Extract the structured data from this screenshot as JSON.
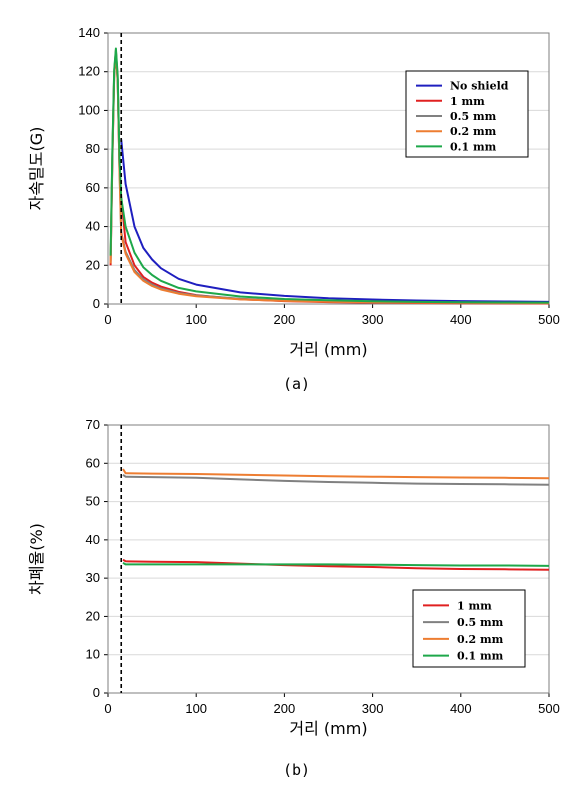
{
  "chart_data": [
    {
      "type": "line",
      "panel_label": "(a)",
      "xlabel": "거리 (mm)",
      "ylabel": "자속밀도(G)",
      "xlim": [
        0,
        500
      ],
      "ylim": [
        0,
        140
      ],
      "xticks": [
        "0",
        "100",
        "200",
        "300",
        "400",
        "500"
      ],
      "yticks": [
        "0",
        "20",
        "40",
        "60",
        "80",
        "100",
        "120",
        "140"
      ],
      "legend_position": "top-right",
      "grid": "horizontal",
      "reference_line_x": 15,
      "series": [
        {
          "name": "No shield",
          "color": "#1f1fbf",
          "x": [
            15,
            20,
            30,
            40,
            50,
            60,
            80,
            100,
            150,
            200,
            250,
            300,
            350,
            400,
            450,
            500
          ],
          "y": [
            85,
            62,
            40,
            29,
            23,
            18.5,
            13,
            10,
            6,
            4.2,
            3,
            2.3,
            1.8,
            1.5,
            1.3,
            1.1
          ]
        },
        {
          "name": "1 mm",
          "color": "#e02020",
          "x": [
            3,
            5,
            7,
            9,
            11,
            13,
            15,
            20,
            30,
            40,
            50,
            60,
            80,
            100,
            150,
            200,
            250,
            300,
            350,
            400,
            450,
            500
          ],
          "y": [
            20,
            75,
            118,
            130,
            115,
            70,
            55,
            32,
            20,
            14,
            11,
            9,
            6.3,
            4.6,
            2.5,
            1.5,
            1,
            0.7,
            0.5,
            0.4,
            0.3,
            0.25
          ]
        },
        {
          "name": "0.5 mm",
          "color": "#808080",
          "x": [
            3,
            5,
            7,
            9,
            11,
            13,
            15,
            20,
            30,
            40,
            50,
            60,
            80,
            100,
            150,
            200,
            250,
            300,
            350,
            400,
            450,
            500
          ],
          "y": [
            22,
            78,
            120,
            131,
            116,
            70,
            37,
            27,
            17.5,
            12.7,
            10,
            8,
            5.7,
            4.4,
            2.7,
            1.8,
            1.3,
            1,
            0.8,
            0.7,
            0.6,
            0.5
          ]
        },
        {
          "name": "0.2 mm",
          "color": "#ed7d31",
          "x": [
            3,
            5,
            7,
            9,
            11,
            13,
            15,
            20,
            30,
            40,
            50,
            60,
            80,
            100,
            150,
            200,
            250,
            300,
            350,
            400,
            450,
            500
          ],
          "y": [
            21,
            77,
            119,
            131,
            115,
            68,
            36,
            26,
            16.5,
            12,
            9.3,
            7.5,
            5.3,
            4,
            2.4,
            1.6,
            1.2,
            0.9,
            0.7,
            0.6,
            0.5,
            0.45
          ]
        },
        {
          "name": "0.1 mm",
          "color": "#1ea84a",
          "x": [
            3,
            5,
            7,
            9,
            11,
            13,
            15,
            20,
            30,
            40,
            50,
            60,
            80,
            100,
            150,
            200,
            250,
            300,
            350,
            400,
            450,
            500
          ],
          "y": [
            25,
            80,
            121,
            132,
            118,
            75,
            55,
            40,
            26.5,
            19,
            15,
            12,
            8.3,
            6.5,
            3.9,
            2.6,
            1.9,
            1.4,
            1.1,
            0.9,
            0.8,
            0.7
          ]
        }
      ]
    },
    {
      "type": "line",
      "panel_label": "(b)",
      "xlabel": "거리 (mm)",
      "ylabel": "차폐율(%)",
      "xlim": [
        0,
        500
      ],
      "ylim": [
        0,
        70
      ],
      "xticks": [
        "0",
        "100",
        "200",
        "300",
        "400",
        "500"
      ],
      "yticks": [
        "0",
        "10",
        "20",
        "30",
        "40",
        "50",
        "60",
        "70"
      ],
      "legend_position": "bottom-right",
      "grid": "horizontal",
      "reference_line_x": 15,
      "series": [
        {
          "name": "1 mm",
          "color": "#e02020",
          "x": [
            17,
            20,
            50,
            100,
            150,
            200,
            250,
            300,
            350,
            400,
            450,
            500
          ],
          "y": [
            34.8,
            34.4,
            34.3,
            34.2,
            33.8,
            33.4,
            33.1,
            32.9,
            32.6,
            32.4,
            32.3,
            32.2
          ]
        },
        {
          "name": "0.5 mm",
          "color": "#808080",
          "x": [
            17,
            20,
            50,
            100,
            150,
            200,
            250,
            300,
            350,
            400,
            450,
            500
          ],
          "y": [
            57,
            56.5,
            56.4,
            56.2,
            55.8,
            55.4,
            55.1,
            54.9,
            54.7,
            54.6,
            54.5,
            54.4
          ]
        },
        {
          "name": "0.2 mm",
          "color": "#ed7d31",
          "x": [
            17,
            20,
            50,
            100,
            150,
            200,
            250,
            300,
            350,
            400,
            450,
            500
          ],
          "y": [
            58.5,
            57.4,
            57.3,
            57.2,
            57,
            56.8,
            56.6,
            56.5,
            56.4,
            56.3,
            56.2,
            56.1
          ]
        },
        {
          "name": "0.1 mm",
          "color": "#1ea84a",
          "x": [
            17,
            20,
            50,
            100,
            150,
            200,
            250,
            300,
            350,
            400,
            450,
            500
          ],
          "y": [
            34,
            33.6,
            33.6,
            33.6,
            33.6,
            33.6,
            33.6,
            33.5,
            33.4,
            33.3,
            33.3,
            33.2
          ]
        }
      ]
    }
  ]
}
